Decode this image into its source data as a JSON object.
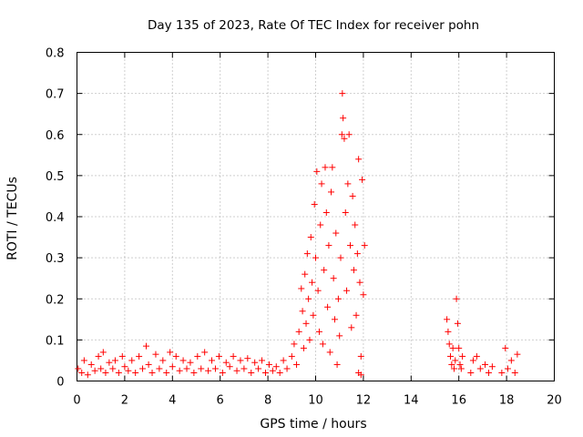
{
  "chart_data": {
    "type": "scatter",
    "title": "Day 135 of 2023, Rate Of TEC Index for receiver pohn",
    "xlabel": "GPS time / hours",
    "ylabel": "ROTI / TECUs",
    "xlim": [
      0,
      20
    ],
    "ylim": [
      0,
      0.8
    ],
    "x_ticks": [
      "0",
      "2",
      "4",
      "6",
      "8",
      "10",
      "12",
      "14",
      "16",
      "18",
      "20"
    ],
    "y_ticks": [
      "0",
      "0.1",
      "0.2",
      "0.3",
      "0.4",
      "0.5",
      "0.6",
      "0.7",
      "0.8"
    ],
    "grid": true,
    "marker": "+",
    "color": "#ff0000",
    "series": [
      {
        "name": "ROTI",
        "points": [
          [
            0.05,
            0.03
          ],
          [
            0.2,
            0.02
          ],
          [
            0.3,
            0.05
          ],
          [
            0.45,
            0.015
          ],
          [
            0.6,
            0.04
          ],
          [
            0.75,
            0.025
          ],
          [
            0.9,
            0.06
          ],
          [
            1.0,
            0.03
          ],
          [
            1.1,
            0.07
          ],
          [
            1.2,
            0.02
          ],
          [
            1.35,
            0.045
          ],
          [
            1.5,
            0.03
          ],
          [
            1.6,
            0.05
          ],
          [
            1.75,
            0.02
          ],
          [
            1.9,
            0.06
          ],
          [
            2.0,
            0.035
          ],
          [
            2.15,
            0.025
          ],
          [
            2.3,
            0.05
          ],
          [
            2.45,
            0.02
          ],
          [
            2.6,
            0.06
          ],
          [
            2.75,
            0.03
          ],
          [
            2.9,
            0.085
          ],
          [
            3.0,
            0.04
          ],
          [
            3.15,
            0.02
          ],
          [
            3.3,
            0.065
          ],
          [
            3.45,
            0.03
          ],
          [
            3.6,
            0.05
          ],
          [
            3.75,
            0.02
          ],
          [
            3.9,
            0.07
          ],
          [
            4.0,
            0.035
          ],
          [
            4.15,
            0.06
          ],
          [
            4.3,
            0.025
          ],
          [
            4.45,
            0.05
          ],
          [
            4.6,
            0.03
          ],
          [
            4.75,
            0.045
          ],
          [
            4.9,
            0.02
          ],
          [
            5.05,
            0.06
          ],
          [
            5.2,
            0.03
          ],
          [
            5.35,
            0.07
          ],
          [
            5.5,
            0.025
          ],
          [
            5.65,
            0.05
          ],
          [
            5.8,
            0.03
          ],
          [
            5.95,
            0.06
          ],
          [
            6.1,
            0.02
          ],
          [
            6.25,
            0.045
          ],
          [
            6.4,
            0.035
          ],
          [
            6.55,
            0.06
          ],
          [
            6.7,
            0.025
          ],
          [
            6.85,
            0.05
          ],
          [
            7.0,
            0.03
          ],
          [
            7.15,
            0.055
          ],
          [
            7.3,
            0.02
          ],
          [
            7.45,
            0.045
          ],
          [
            7.6,
            0.03
          ],
          [
            7.75,
            0.05
          ],
          [
            7.9,
            0.02
          ],
          [
            8.05,
            0.04
          ],
          [
            8.2,
            0.025
          ],
          [
            8.35,
            0.035
          ],
          [
            8.5,
            0.02
          ],
          [
            8.65,
            0.05
          ],
          [
            8.8,
            0.03
          ],
          [
            9.0,
            0.06
          ],
          [
            9.1,
            0.09
          ],
          [
            9.2,
            0.04
          ],
          [
            9.3,
            0.12
          ],
          [
            9.4,
            0.225
          ],
          [
            9.45,
            0.17
          ],
          [
            9.5,
            0.08
          ],
          [
            9.55,
            0.26
          ],
          [
            9.6,
            0.14
          ],
          [
            9.65,
            0.31
          ],
          [
            9.7,
            0.2
          ],
          [
            9.75,
            0.1
          ],
          [
            9.8,
            0.35
          ],
          [
            9.85,
            0.24
          ],
          [
            9.9,
            0.16
          ],
          [
            9.95,
            0.43
          ],
          [
            10.0,
            0.3
          ],
          [
            10.05,
            0.51
          ],
          [
            10.1,
            0.22
          ],
          [
            10.15,
            0.12
          ],
          [
            10.2,
            0.38
          ],
          [
            10.25,
            0.48
          ],
          [
            10.3,
            0.09
          ],
          [
            10.35,
            0.27
          ],
          [
            10.4,
            0.52
          ],
          [
            10.45,
            0.41
          ],
          [
            10.5,
            0.18
          ],
          [
            10.55,
            0.33
          ],
          [
            10.6,
            0.07
          ],
          [
            10.65,
            0.46
          ],
          [
            10.7,
            0.52
          ],
          [
            10.75,
            0.25
          ],
          [
            10.8,
            0.15
          ],
          [
            10.85,
            0.36
          ],
          [
            10.9,
            0.04
          ],
          [
            10.95,
            0.2
          ],
          [
            11.0,
            0.11
          ],
          [
            11.05,
            0.3
          ],
          [
            11.1,
            0.6
          ],
          [
            11.12,
            0.7
          ],
          [
            11.15,
            0.64
          ],
          [
            11.2,
            0.59
          ],
          [
            11.25,
            0.41
          ],
          [
            11.3,
            0.22
          ],
          [
            11.35,
            0.48
          ],
          [
            11.4,
            0.6
          ],
          [
            11.45,
            0.33
          ],
          [
            11.5,
            0.13
          ],
          [
            11.55,
            0.45
          ],
          [
            11.6,
            0.27
          ],
          [
            11.65,
            0.38
          ],
          [
            11.7,
            0.16
          ],
          [
            11.75,
            0.31
          ],
          [
            11.8,
            0.54
          ],
          [
            11.85,
            0.24
          ],
          [
            11.9,
            0.06
          ],
          [
            11.95,
            0.49
          ],
          [
            12.0,
            0.21
          ],
          [
            12.05,
            0.33
          ],
          [
            11.8,
            0.02
          ],
          [
            11.9,
            0.015
          ],
          [
            15.5,
            0.15
          ],
          [
            15.55,
            0.12
          ],
          [
            15.6,
            0.09
          ],
          [
            15.65,
            0.06
          ],
          [
            15.7,
            0.04
          ],
          [
            15.75,
            0.08
          ],
          [
            15.8,
            0.03
          ],
          [
            15.85,
            0.05
          ],
          [
            15.9,
            0.2
          ],
          [
            15.95,
            0.14
          ],
          [
            16.0,
            0.08
          ],
          [
            16.05,
            0.04
          ],
          [
            16.1,
            0.03
          ],
          [
            16.15,
            0.06
          ],
          [
            16.5,
            0.02
          ],
          [
            16.6,
            0.05
          ],
          [
            16.75,
            0.06
          ],
          [
            16.9,
            0.03
          ],
          [
            17.1,
            0.04
          ],
          [
            17.25,
            0.02
          ],
          [
            17.4,
            0.035
          ],
          [
            17.8,
            0.02
          ],
          [
            17.95,
            0.08
          ],
          [
            18.05,
            0.03
          ],
          [
            18.2,
            0.05
          ],
          [
            18.35,
            0.02
          ],
          [
            18.45,
            0.065
          ]
        ]
      }
    ]
  }
}
